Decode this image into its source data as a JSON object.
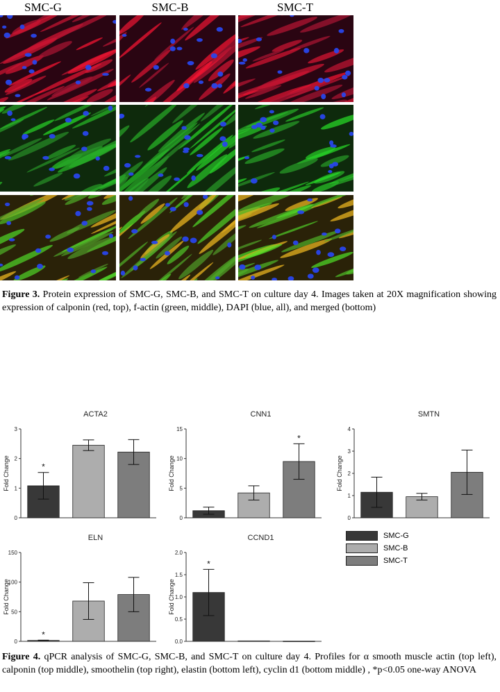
{
  "columns": [
    "SMC-G",
    "SMC-B",
    "SMC-T"
  ],
  "figure3": {
    "label": "Figure 3.",
    "text": " Protein expression of SMC-G, SMC-B, and SMC-T on culture day 4. Images taken at 20X magnification showing expression of calponin (red, top), f-actin (green, middle), DAPI (blue, all), and merged (bottom)"
  },
  "figure4": {
    "label": "Figure 4.",
    "text": " qPCR analysis of SMC-G, SMC-B, and SMC-T on culture day 4. Profiles for α smooth muscle actin (top left), calponin (top middle), smoothelin (top right), elastin (bottom left), cyclin d1 (bottom middle) , *p<0.05 one-way ANOVA"
  },
  "micrographs": [
    {
      "row": "calponin",
      "color": "red",
      "cells": [
        "SMC-G",
        "SMC-B",
        "SMC-T"
      ]
    },
    {
      "row": "f-actin",
      "color": "green",
      "cells": [
        "SMC-G",
        "SMC-B",
        "SMC-T"
      ]
    },
    {
      "row": "merged",
      "color": "merged",
      "cells": [
        "SMC-G",
        "SMC-B",
        "SMC-T"
      ]
    }
  ],
  "colors": {
    "SMC-G": "#383838",
    "SMC-B": "#adadad",
    "SMC-T": "#7d7d7d"
  },
  "chart_data": [
    {
      "type": "bar",
      "title": "ACTA2",
      "ylabel": "Fold Change",
      "categories": [
        "SMC-G",
        "SMC-B",
        "SMC-T"
      ],
      "values": [
        1.08,
        2.45,
        2.22
      ],
      "errors": [
        0.45,
        0.18,
        0.42
      ],
      "significant": [
        true,
        false,
        false
      ],
      "ylim": [
        0,
        3
      ],
      "yticks": [
        "0",
        "1",
        "2",
        "3"
      ]
    },
    {
      "type": "bar",
      "title": "CNN1",
      "ylabel": "Fold Change",
      "categories": [
        "SMC-G",
        "SMC-B",
        "SMC-T"
      ],
      "values": [
        1.2,
        4.2,
        9.5
      ],
      "errors": [
        0.6,
        1.2,
        3.0
      ],
      "significant": [
        false,
        false,
        true
      ],
      "ylim": [
        0,
        15
      ],
      "yticks": [
        "0",
        "5",
        "10",
        "15"
      ]
    },
    {
      "type": "bar",
      "title": "SMTN",
      "ylabel": "Fold Change",
      "categories": [
        "SMC-G",
        "SMC-B",
        "SMC-T"
      ],
      "values": [
        1.15,
        0.95,
        2.05
      ],
      "errors": [
        0.68,
        0.15,
        1.0
      ],
      "significant": [
        false,
        false,
        false
      ],
      "ylim": [
        0,
        4
      ],
      "yticks": [
        "0",
        "1",
        "2",
        "3",
        "4"
      ]
    },
    {
      "type": "bar",
      "title": "ELN",
      "ylabel": "Fold Change",
      "categories": [
        "SMC-G",
        "SMC-B",
        "SMC-T"
      ],
      "values": [
        1.5,
        68,
        79
      ],
      "errors": [
        0.5,
        31,
        29
      ],
      "significant": [
        true,
        false,
        false
      ],
      "ylim": [
        0,
        150
      ],
      "yticks": [
        "0",
        "50",
        "100",
        "150"
      ]
    },
    {
      "type": "bar",
      "title": "CCND1",
      "ylabel": "Fold Change",
      "categories": [
        "SMC-G",
        "SMC-B",
        "SMC-T"
      ],
      "values": [
        1.1,
        0.01,
        0.005
      ],
      "errors": [
        0.52,
        0.0,
        0.0
      ],
      "significant": [
        true,
        false,
        false
      ],
      "ylim": [
        0,
        2.0
      ],
      "yticks": [
        "0.0",
        "0.5",
        "1.0",
        "1.5",
        "2.0"
      ]
    }
  ],
  "legend": [
    "SMC-G",
    "SMC-B",
    "SMC-T"
  ]
}
